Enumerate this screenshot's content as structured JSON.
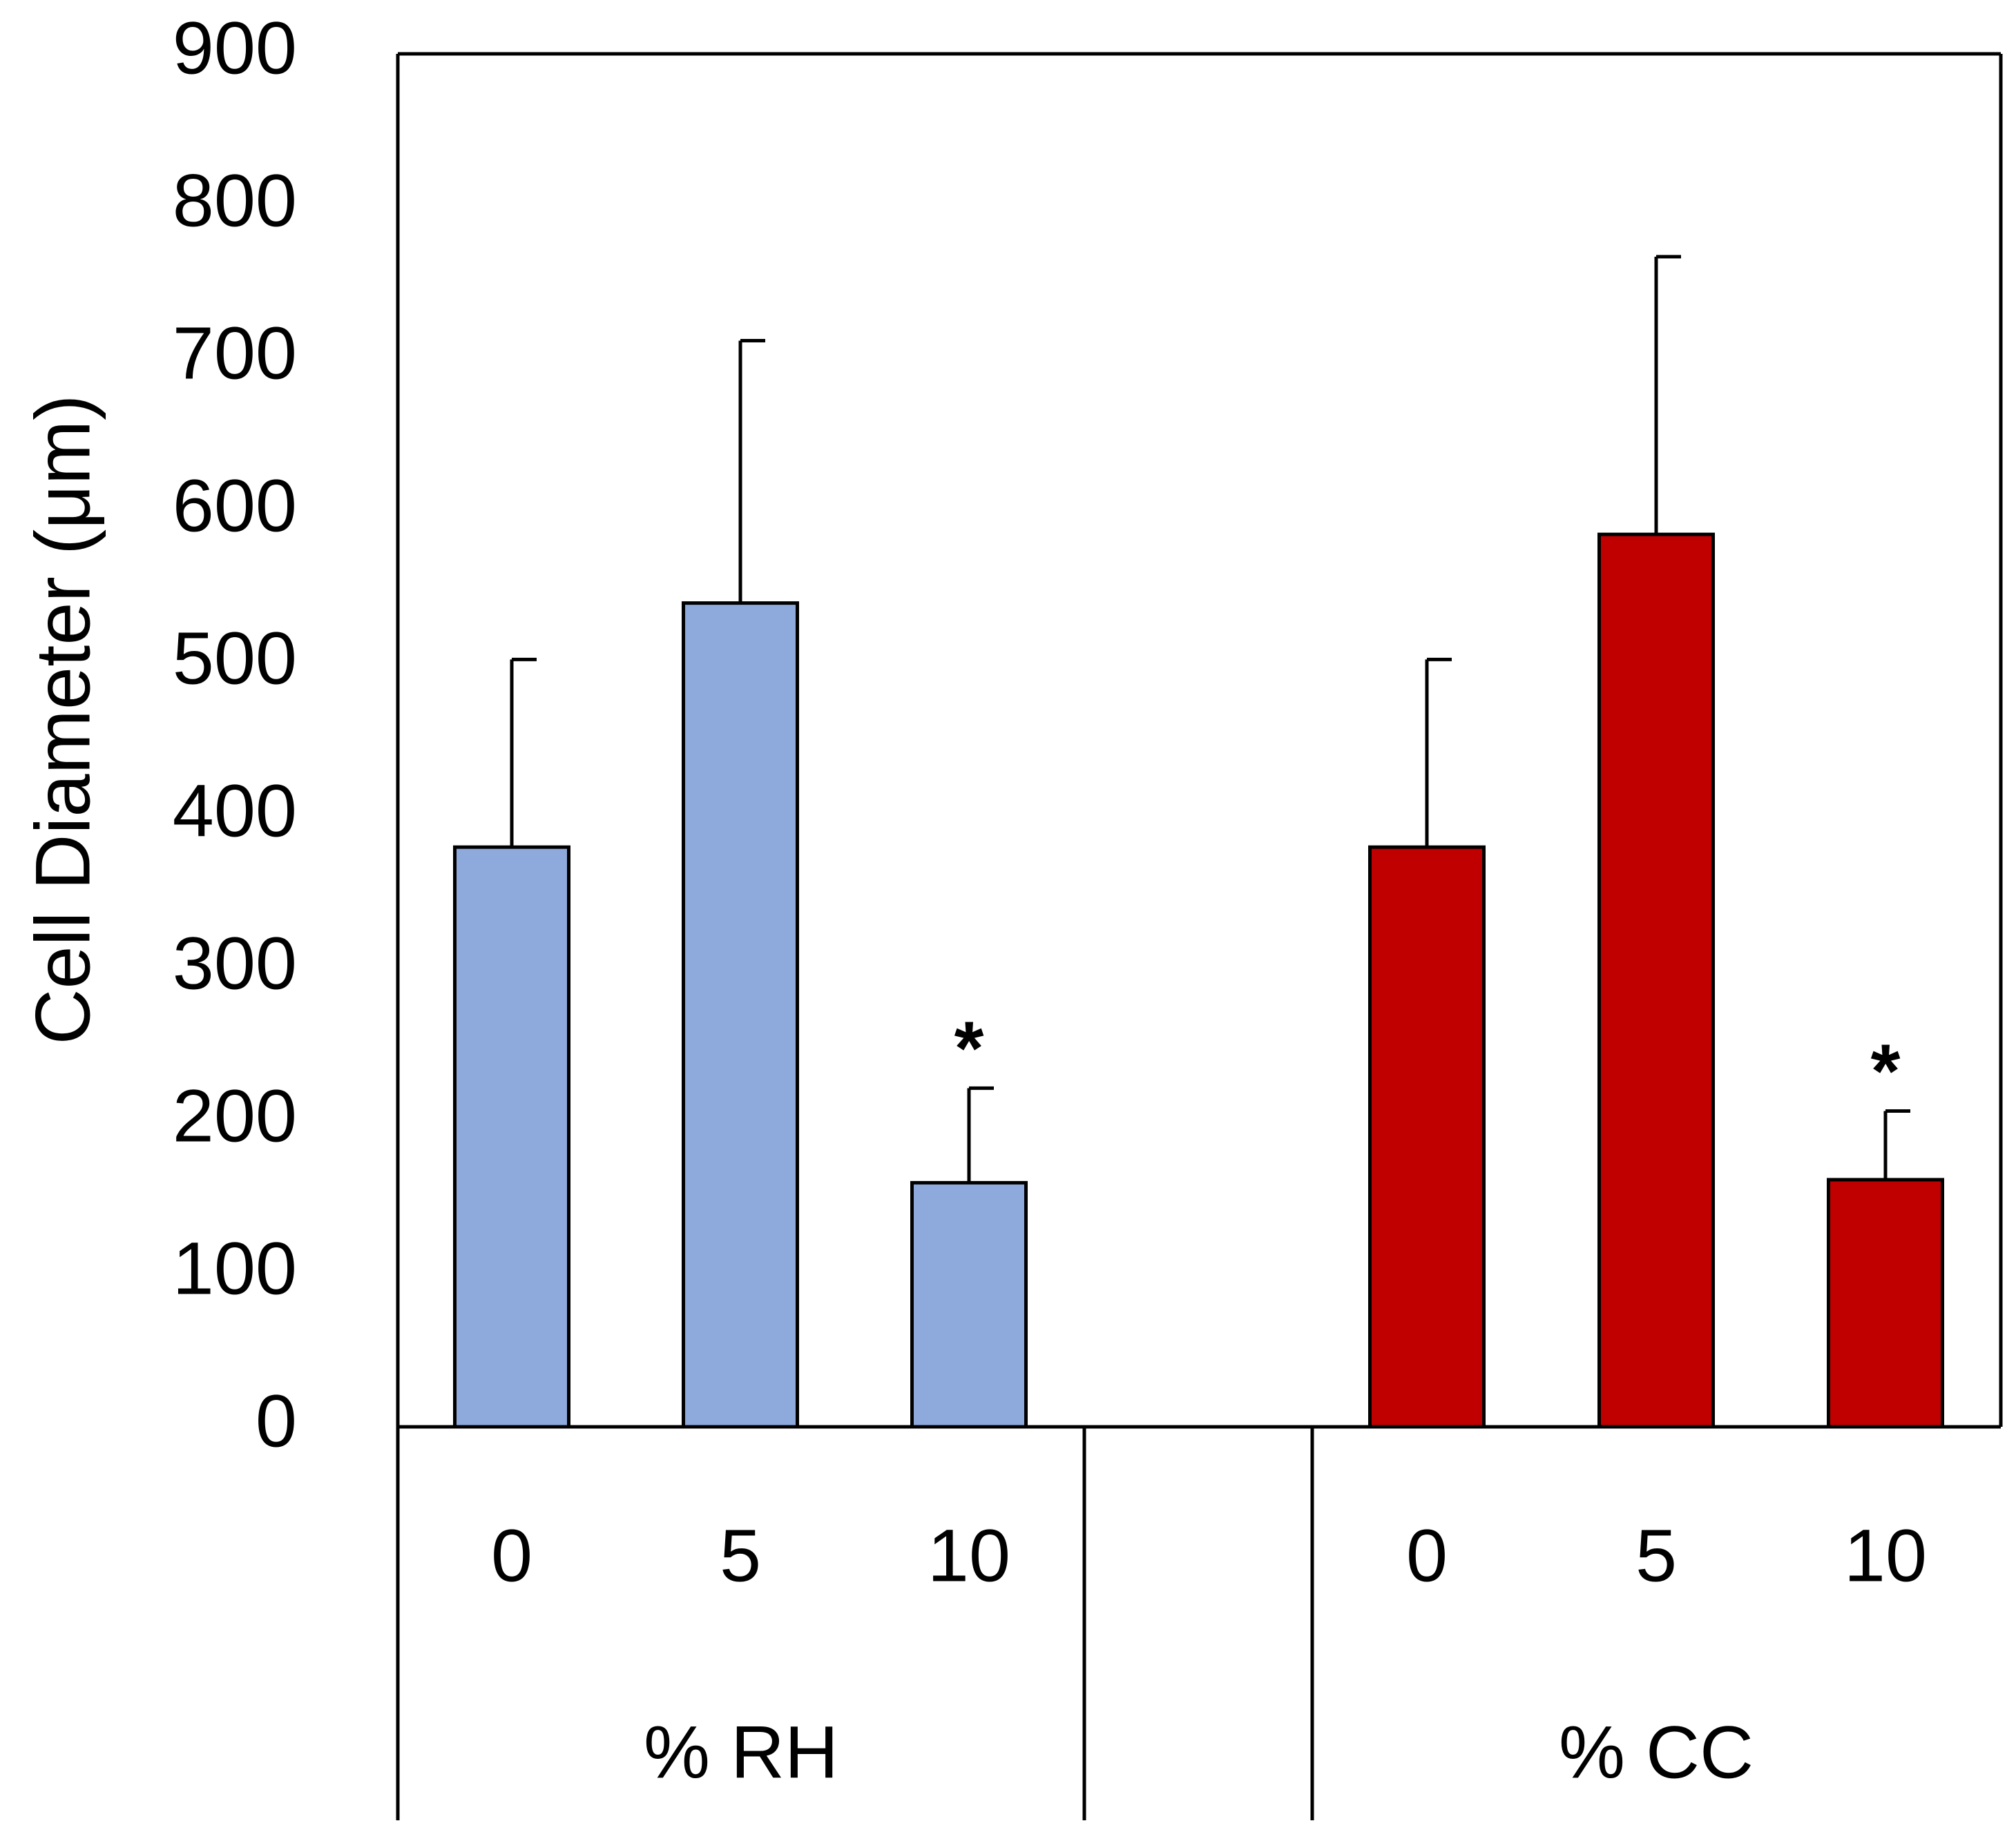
{
  "chart_data": {
    "type": "bar",
    "title": "",
    "xlabel": "",
    "ylabel": "Cell Diameter (μm)",
    "ylim": [
      0,
      900
    ],
    "yticks": [
      "0",
      "100",
      "200",
      "300",
      "400",
      "500",
      "600",
      "700",
      "800",
      "900"
    ],
    "grid": false,
    "groups": [
      {
        "label": "% RH",
        "color": "#8EA9DB",
        "bars": [
          {
            "category": "0",
            "value": 380,
            "error": 123,
            "annotation": ""
          },
          {
            "category": "5",
            "value": 540,
            "error": 172,
            "annotation": ""
          },
          {
            "category": "10",
            "value": 160,
            "error": 62,
            "annotation": "*"
          }
        ]
      },
      {
        "label": "% CC",
        "color": "#C00000",
        "bars": [
          {
            "category": "0",
            "value": 380,
            "error": 123,
            "annotation": ""
          },
          {
            "category": "5",
            "value": 585,
            "error": 182,
            "annotation": ""
          },
          {
            "category": "10",
            "value": 162,
            "error": 45,
            "annotation": "*"
          }
        ]
      }
    ]
  }
}
